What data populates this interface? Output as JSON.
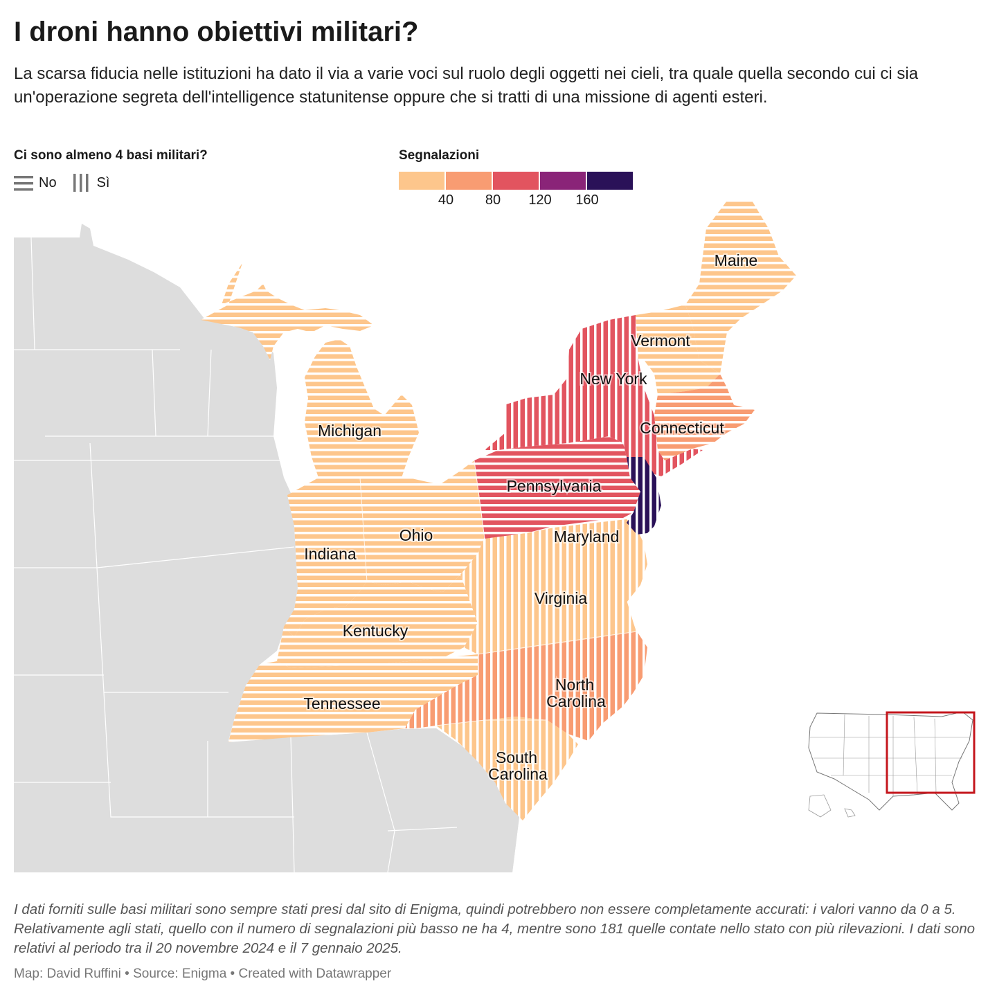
{
  "title": "I droni hanno obiettivi militari?",
  "subtitle": "La scarsa fiducia nelle istituzioni ha dato il via a varie voci sul ruolo degli oggetti nei cieli, tra quale quella secondo cui ci sia un'operazione segreta dell'intelligence statunitense oppure che si tratti di una missione di agenti esteri.",
  "legend_bases": {
    "title": "Ci sono almeno 4 basi militari?",
    "items": [
      {
        "label": "No",
        "pattern": "horizontal-stripes"
      },
      {
        "label": "Sì",
        "pattern": "vertical-stripes"
      }
    ]
  },
  "legend_reports": {
    "title": "Segnalazioni",
    "colors": [
      "#fdc68c",
      "#f89c72",
      "#e2545f",
      "#8a2478",
      "#2a1158"
    ],
    "ticks": [
      "40",
      "80",
      "120",
      "160"
    ]
  },
  "map": {
    "background_color": "#dddddd",
    "states": [
      {
        "name": "Maine",
        "bases": "No",
        "color_class": 0
      },
      {
        "name": "Vermont",
        "bases": "No",
        "color_class": 0
      },
      {
        "name": "New York",
        "bases": "Sì",
        "color_class": 2
      },
      {
        "name": "Connecticut",
        "bases": "No",
        "color_class": 1
      },
      {
        "name": "Michigan",
        "bases": "No",
        "color_class": 0
      },
      {
        "name": "Pennsylvania",
        "bases": "No",
        "color_class": 2
      },
      {
        "name": "Ohio",
        "bases": "No",
        "color_class": 0
      },
      {
        "name": "Indiana",
        "bases": "No",
        "color_class": 0
      },
      {
        "name": "Maryland",
        "bases": "Sì",
        "color_class": 0
      },
      {
        "name": "Virginia",
        "bases": "Sì",
        "color_class": 0
      },
      {
        "name": "Kentucky",
        "bases": "No",
        "color_class": 0
      },
      {
        "name": "Tennessee",
        "bases": "No",
        "color_class": 0
      },
      {
        "name": "North Carolina",
        "label_lines": [
          "North",
          "Carolina"
        ],
        "bases": "Sì",
        "color_class": 1
      },
      {
        "name": "South Carolina",
        "label_lines": [
          "South",
          "Carolina"
        ],
        "bases": "Sì",
        "color_class": 0
      }
    ],
    "new_jersey_color_class": 4
  },
  "note": "I dati forniti sulle basi militari sono sempre stati presi dal sito di Enigma, quindi potrebbero non essere completamente accurati: i valori vanno da 0 a 5. Relativamente agli stati, quello con il numero di segnalazioni più basso ne ha 4, mentre sono 181 quelle contate nello stato con più rilevazioni. I dati sono relativi al periodo tra il 20 novembre 2024 e il 7 gennaio 2025.",
  "credit": "Map: David Ruffini • Source: Enigma • Created with Datawrapper"
}
